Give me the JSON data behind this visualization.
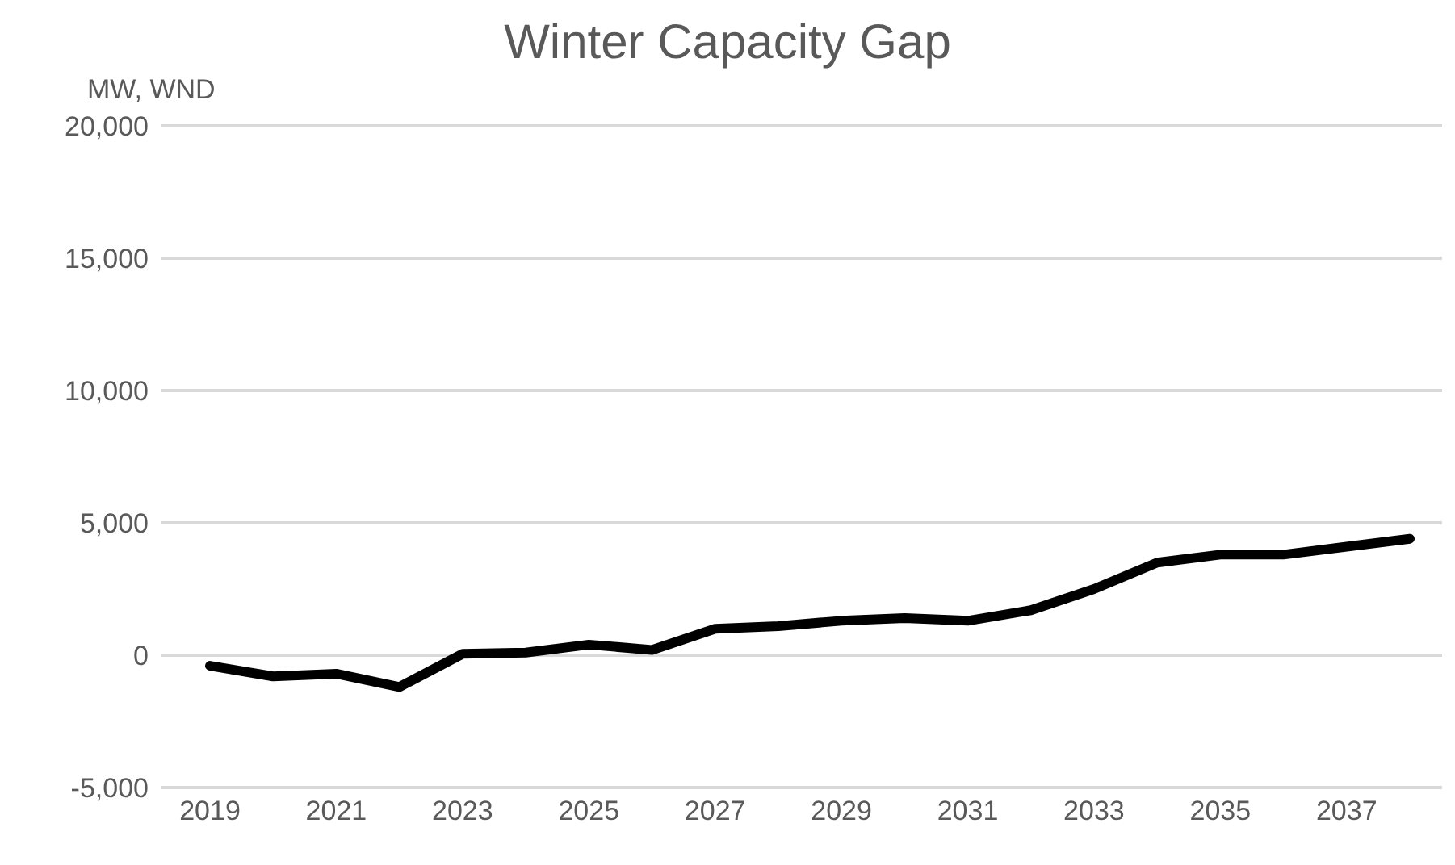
{
  "chart_data": {
    "type": "line",
    "title": "Winter Capacity Gap",
    "ylabel": "MW, WND",
    "categories": [
      "2019",
      null,
      "2021",
      null,
      "2023",
      null,
      "2025",
      null,
      "2027",
      null,
      "2029",
      null,
      "2031",
      null,
      "2033",
      null,
      "2035",
      null,
      "2037",
      null
    ],
    "series": [
      {
        "color": "#000000",
        "values": [
          -400,
          -800,
          -700,
          -1200,
          50,
          100,
          400,
          200,
          1000,
          1100,
          1300,
          1400,
          1300,
          1700,
          2500,
          3500,
          3800,
          3800,
          4100,
          4400
        ]
      }
    ],
    "ylim": [
      -5000,
      20000
    ],
    "yticks": [
      {
        "value": -5000,
        "label": "-5,000"
      },
      0,
      {
        "value": 5000,
        "label": "5,000"
      },
      {
        "value": 10000,
        "label": "10,000"
      },
      {
        "value": 15000,
        "label": "15,000"
      },
      {
        "value": 20000,
        "label": "20,000"
      }
    ],
    "grid": "y",
    "legend": false,
    "marker": "none",
    "line_style": "solid"
  }
}
